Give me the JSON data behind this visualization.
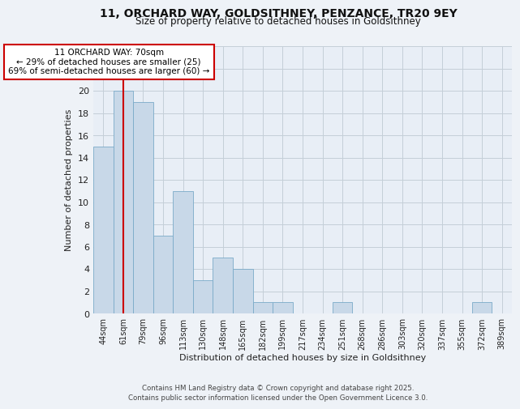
{
  "title1": "11, ORCHARD WAY, GOLDSITHNEY, PENZANCE, TR20 9EY",
  "title2": "Size of property relative to detached houses in Goldsithney",
  "xlabel": "Distribution of detached houses by size in Goldsithney",
  "ylabel": "Number of detached properties",
  "bin_labels": [
    "44sqm",
    "61sqm",
    "79sqm",
    "96sqm",
    "113sqm",
    "130sqm",
    "148sqm",
    "165sqm",
    "182sqm",
    "199sqm",
    "217sqm",
    "234sqm",
    "251sqm",
    "268sqm",
    "286sqm",
    "303sqm",
    "320sqm",
    "337sqm",
    "355sqm",
    "372sqm",
    "389sqm"
  ],
  "bar_values": [
    15,
    20,
    19,
    7,
    11,
    3,
    5,
    4,
    1,
    1,
    0,
    0,
    1,
    0,
    0,
    0,
    0,
    0,
    0,
    1,
    0
  ],
  "bar_color": "#c8d8e8",
  "bar_edge_color": "#7aaac8",
  "subject_line_color": "#cc0000",
  "annotation_text": "11 ORCHARD WAY: 70sqm\n← 29% of detached houses are smaller (25)\n69% of semi-detached houses are larger (60) →",
  "annotation_box_color": "#ffffff",
  "annotation_box_edge": "#cc0000",
  "ylim": [
    0,
    24
  ],
  "yticks": [
    0,
    2,
    4,
    6,
    8,
    10,
    12,
    14,
    16,
    18,
    20,
    22,
    24
  ],
  "footer1": "Contains HM Land Registry data © Crown copyright and database right 2025.",
  "footer2": "Contains public sector information licensed under the Open Government Licence 3.0.",
  "bg_color": "#eef2f7",
  "plot_bg_color": "#e8eef6",
  "grid_color": "#c4cfd8"
}
